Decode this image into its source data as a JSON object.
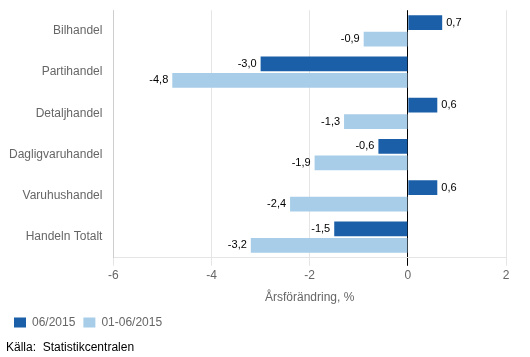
{
  "chart_data": {
    "type": "bar",
    "orientation": "horizontal",
    "categories": [
      "Handeln Totalt",
      "Varuhushandel",
      "Dagligvaruhandel",
      "Detaljhandel",
      "Partihandel",
      "Bilhandel"
    ],
    "series": [
      {
        "name": "06/2015",
        "color": "#1a5fa8",
        "values": [
          -1.5,
          0.6,
          -0.6,
          0.6,
          -3.0,
          0.7
        ],
        "value_labels": [
          "-1,5",
          "0,6",
          "-0,6",
          "0,6",
          "-3,0",
          "0,7"
        ]
      },
      {
        "name": "01-06/2015",
        "color": "#a8cde8",
        "values": [
          -3.2,
          -2.4,
          -1.9,
          -1.3,
          -4.8,
          -0.9
        ],
        "value_labels": [
          "-3,2",
          "-2,4",
          "-1,9",
          "-1,3",
          "-4,8",
          "-0,9"
        ]
      }
    ],
    "x_label": "Årsförändring, %",
    "xlim": [
      -6,
      2
    ],
    "xticks": [
      -6,
      -4,
      -2,
      0,
      2
    ],
    "grid": true,
    "legend": "lower left",
    "data_labels": true,
    "annotations": [
      "Källa:  Statistikcentralen"
    ]
  }
}
